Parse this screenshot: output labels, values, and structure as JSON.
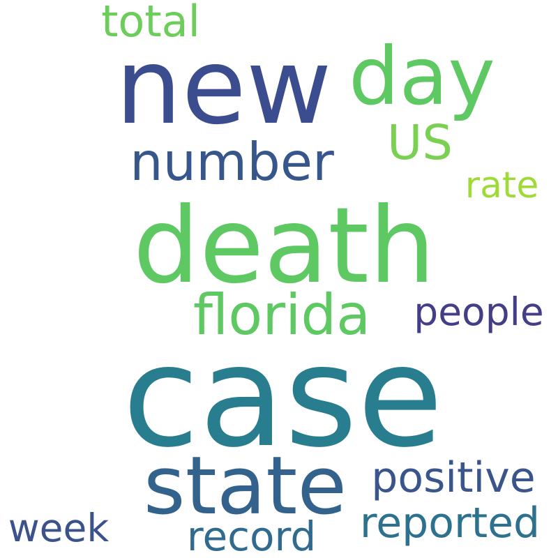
{
  "words": [
    {
      "text": "case",
      "color": "#287d8e"
    },
    {
      "text": "death",
      "color": "#5ec962"
    },
    {
      "text": "new",
      "color": "#3b4d8e"
    },
    {
      "text": "day",
      "color": "#5ec962"
    },
    {
      "text": "number",
      "color": "#36568c"
    },
    {
      "text": "state",
      "color": "#33638d"
    },
    {
      "text": "florida",
      "color": "#5ec962"
    },
    {
      "text": "total",
      "color": "#6ccd5a"
    },
    {
      "text": "US",
      "color": "#7ad151"
    },
    {
      "text": "rate",
      "color": "#a0da39"
    },
    {
      "text": "people",
      "color": "#433e85"
    },
    {
      "text": "positive",
      "color": "#3a548c"
    },
    {
      "text": "reported",
      "color": "#2c728e"
    },
    {
      "text": "week",
      "color": "#3b528b"
    },
    {
      "text": "record",
      "color": "#306a8e"
    }
  ]
}
